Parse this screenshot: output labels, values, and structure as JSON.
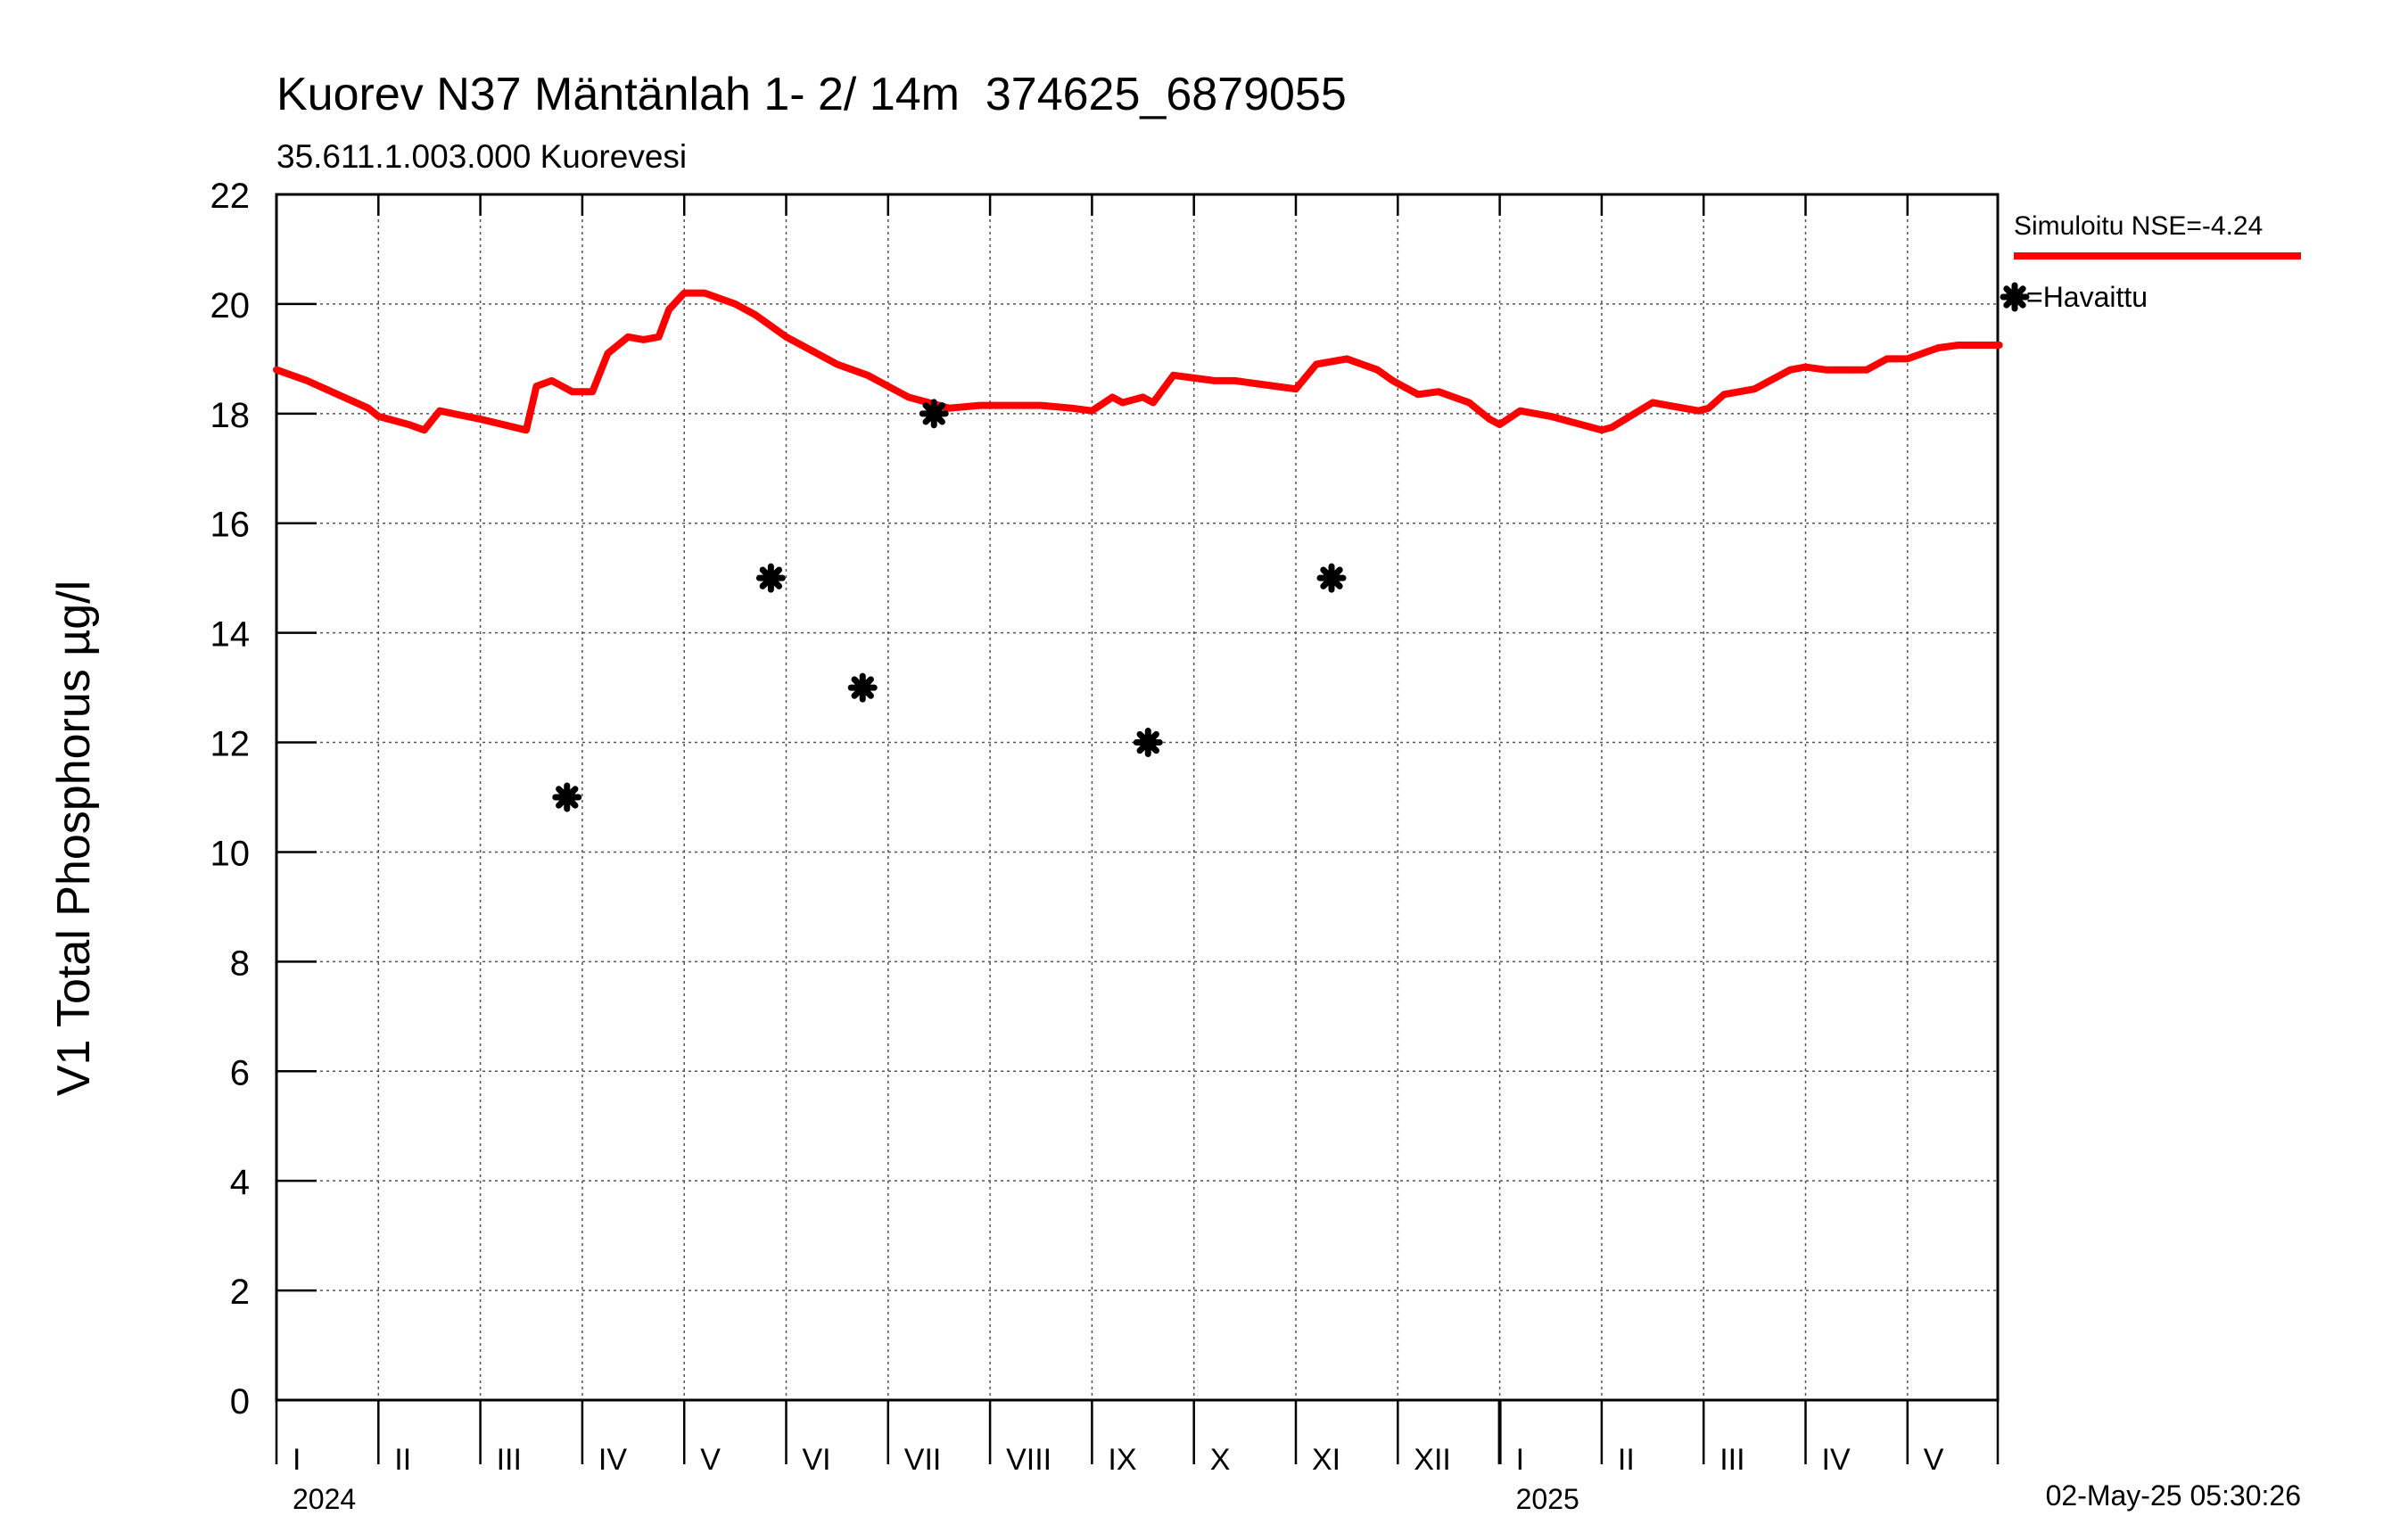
{
  "chart_data": {
    "type": "line",
    "title": "Kuorev N37 Mäntänlah 1- 2/ 14m  374625_6879055",
    "subtitle": "35.611.1.003.000 Kuorevesi",
    "ylabel": "V1 Total Phosphorus µg/l",
    "xlabel": "",
    "ylim": [
      0,
      22
    ],
    "yticks": [
      0,
      2,
      4,
      6,
      8,
      10,
      12,
      14,
      16,
      18,
      20,
      22
    ],
    "months": [
      "I",
      "II",
      "III",
      "IV",
      "V",
      "VI",
      "VII",
      "VIII",
      "IX",
      "X",
      "XI",
      "XII",
      "I",
      "II",
      "III",
      "IV",
      "V"
    ],
    "years": [
      {
        "label": "2024",
        "month_index": 0
      },
      {
        "label": "2025",
        "month_index": 12
      }
    ],
    "timestamp": "02-May-25 05:30:26",
    "grid": true,
    "legend_position": "top-right",
    "series": [
      {
        "name": "Simuloitu NSE=-4.24",
        "kind": "line",
        "color": "#ff0000",
        "x": [
          0,
          0.3,
          0.6,
          0.9,
          1.0,
          1.3,
          1.45,
          1.6,
          2.0,
          2.45,
          2.55,
          2.7,
          2.9,
          3.0,
          3.1,
          3.25,
          3.45,
          3.6,
          3.75,
          3.85,
          4.0,
          4.2,
          4.5,
          4.7,
          5.0,
          5.3,
          5.5,
          5.8,
          6.0,
          6.2,
          6.6,
          6.9,
          7.2,
          7.5,
          7.8,
          8.0,
          8.2,
          8.3,
          8.5,
          8.6,
          8.8,
          9.0,
          9.2,
          9.4,
          9.6,
          9.8,
          10.0,
          10.2,
          10.5,
          10.8,
          10.95,
          11.05,
          11.2,
          11.4,
          11.7,
          11.9,
          12.0,
          12.2,
          12.5,
          12.9,
          13.0,
          13.1,
          13.5,
          13.95,
          14.05,
          14.2,
          14.5,
          14.85,
          15.0,
          15.2,
          15.4,
          15.6,
          15.8,
          16.0,
          16.3,
          16.5,
          16.7,
          16.9
        ],
        "y": [
          18.8,
          18.6,
          18.35,
          18.1,
          17.95,
          17.8,
          17.7,
          18.05,
          17.9,
          17.7,
          18.5,
          18.6,
          18.4,
          18.4,
          18.4,
          19.1,
          19.4,
          19.35,
          19.4,
          19.9,
          20.2,
          20.2,
          20.0,
          19.8,
          19.4,
          19.1,
          18.9,
          18.7,
          18.5,
          18.3,
          18.1,
          18.15,
          18.15,
          18.15,
          18.1,
          18.05,
          18.3,
          18.2,
          18.3,
          18.2,
          18.7,
          18.65,
          18.6,
          18.6,
          18.55,
          18.5,
          18.45,
          18.9,
          19.0,
          18.8,
          18.6,
          18.5,
          18.35,
          18.4,
          18.2,
          17.9,
          17.8,
          18.05,
          17.95,
          17.75,
          17.7,
          17.75,
          18.2,
          18.05,
          18.1,
          18.35,
          18.45,
          18.8,
          18.85,
          18.8,
          18.8,
          18.8,
          19.0,
          19.0,
          19.2,
          19.25,
          19.25,
          19.25
        ]
      },
      {
        "name": "Havaittu",
        "legend_text": "=Havaittu",
        "kind": "scatter",
        "marker": "asterisk",
        "color": "#000000",
        "x": [
          2.85,
          4.85,
          5.75,
          6.45,
          8.55,
          10.35
        ],
        "y": [
          11,
          15,
          13,
          18,
          12,
          15
        ]
      }
    ]
  }
}
